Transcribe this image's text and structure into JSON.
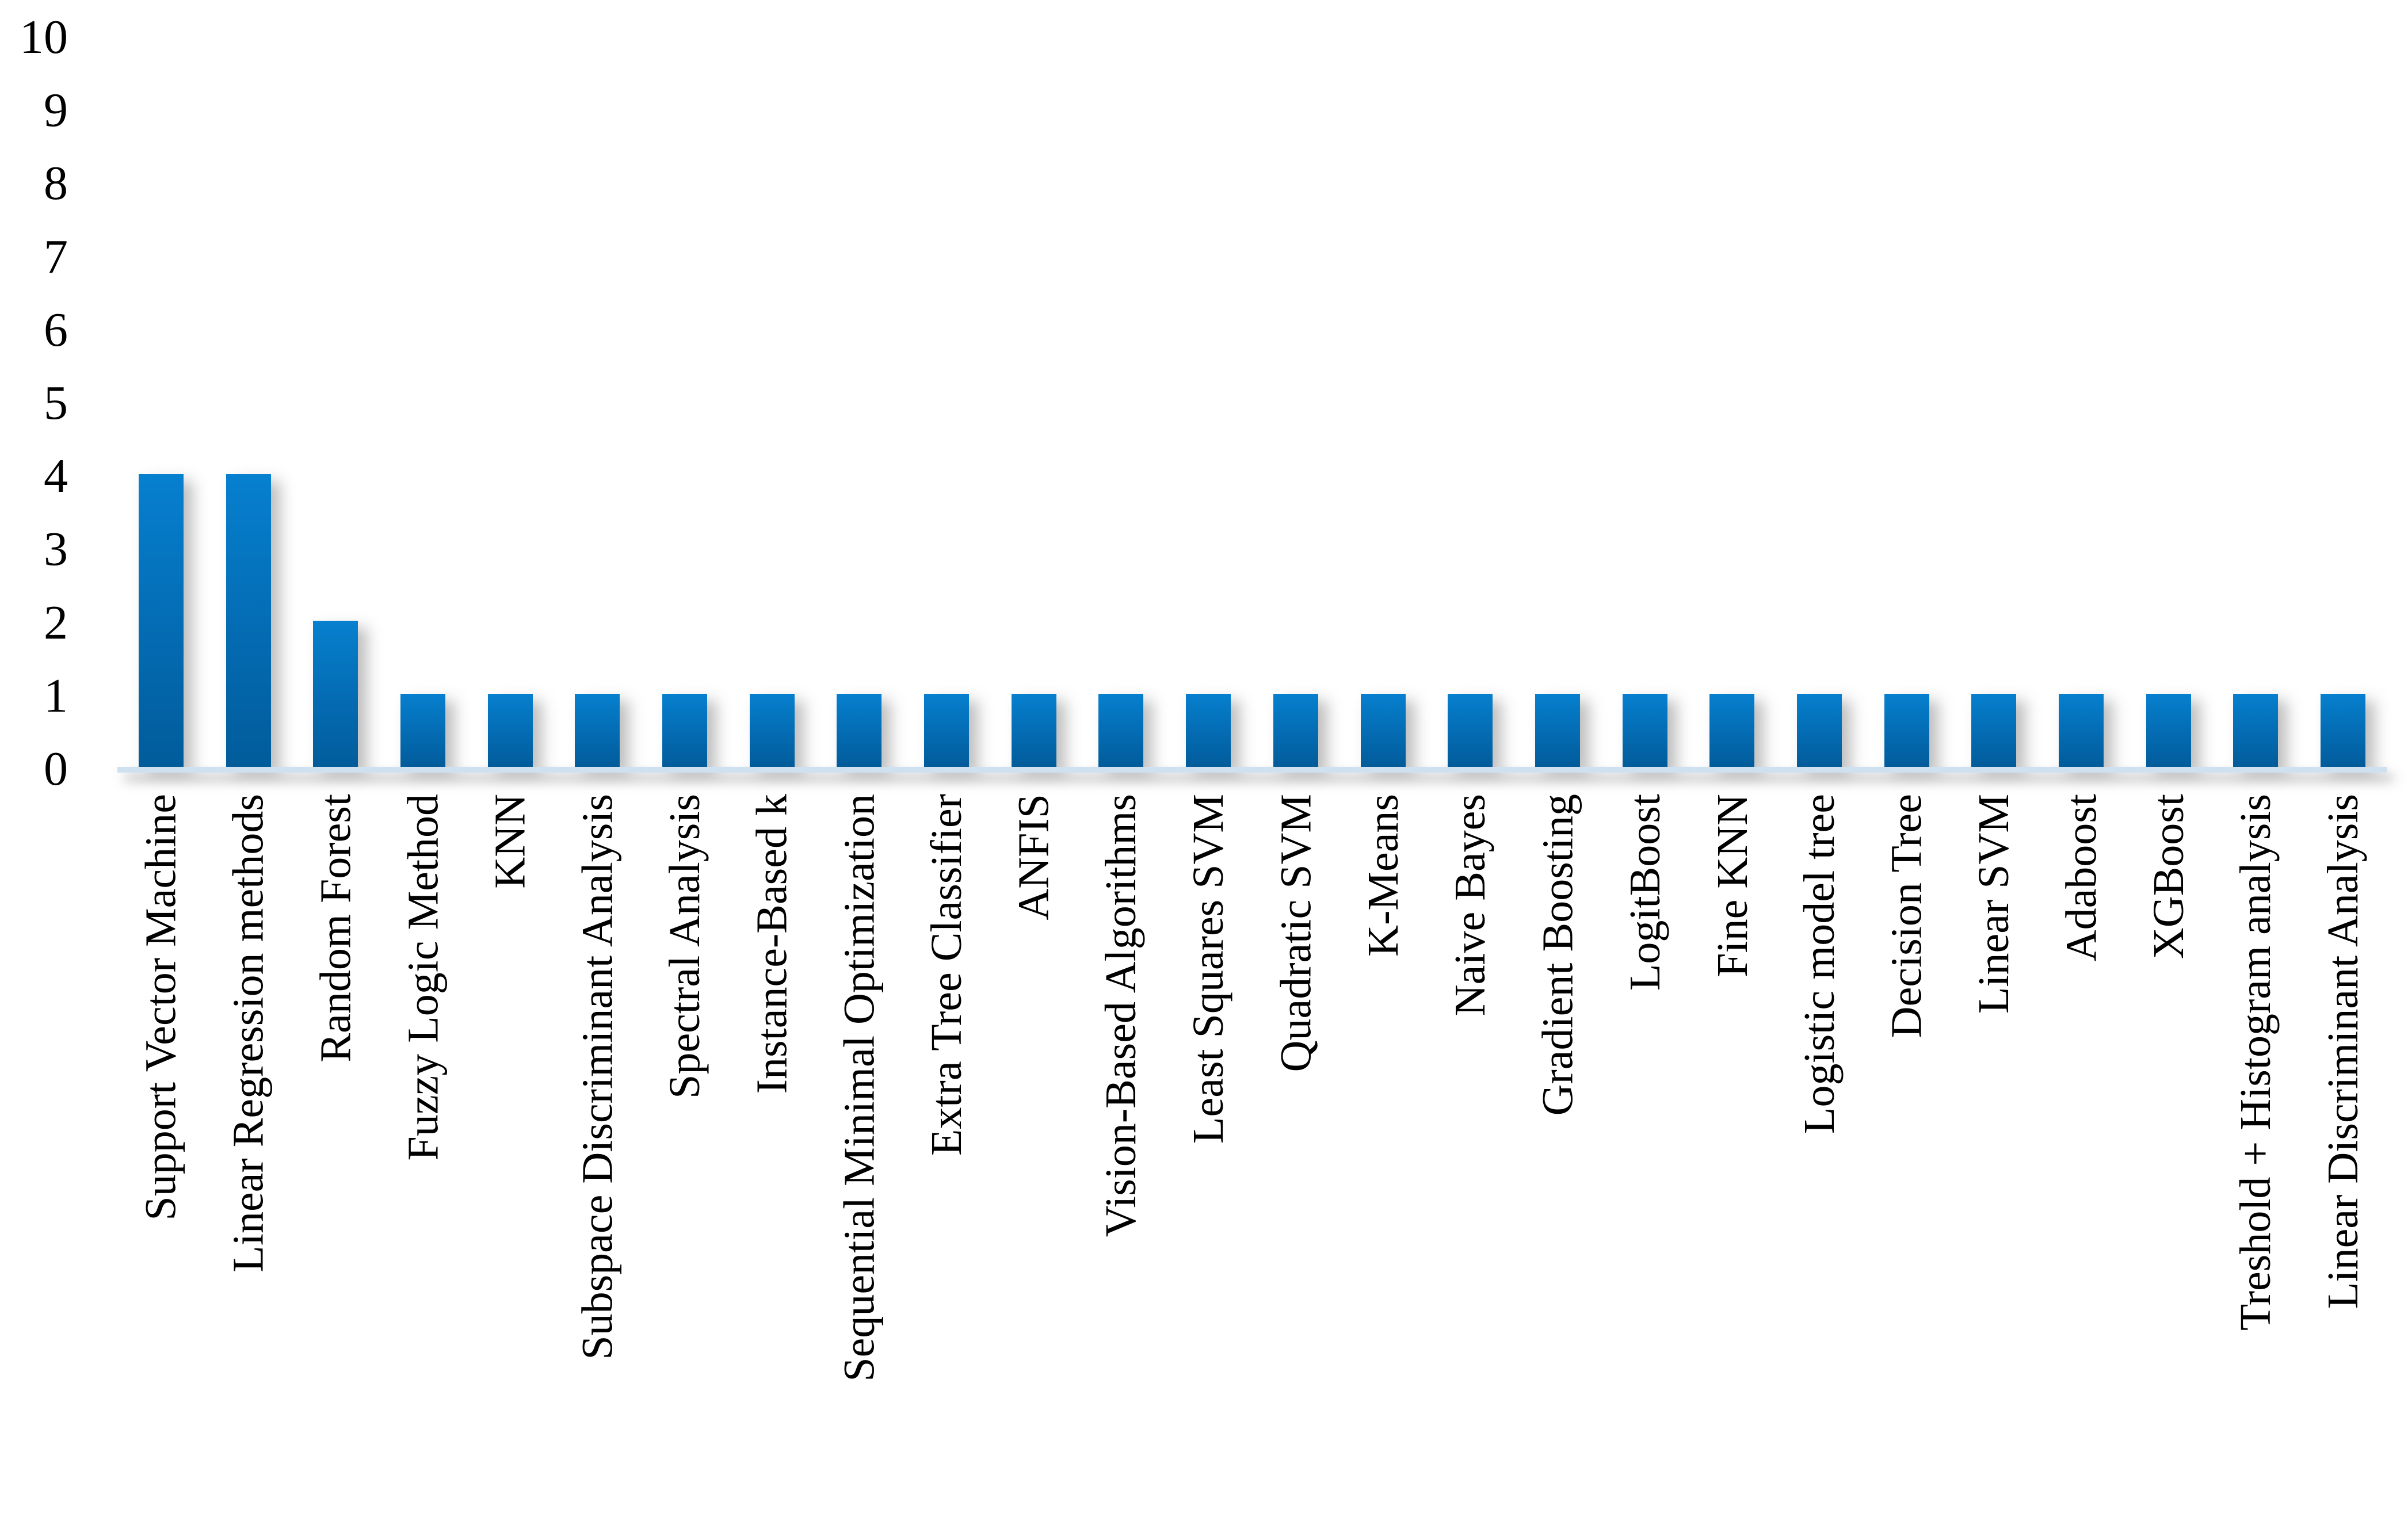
{
  "chart_data": {
    "type": "bar",
    "title": "",
    "xlabel": "",
    "ylabel": "",
    "categories": [
      "Support Vector Machine",
      "Linear Regression methods",
      "Random Forest",
      "Fuzzy Logic Method",
      "KNN",
      "Subspace Discriminant Analysis",
      "Spectral Analysis",
      "Instance-Based k",
      "Sequential Minimal Optimization",
      "Extra Tree Classifier",
      "ANFIS",
      "Vision-Based Algorithms",
      "Least Squares SVM",
      "Quadratic SVM",
      "K-Means",
      "Naive Bayes",
      "Gradient Boosting",
      "LogitBoost",
      "Fine KNN",
      "Logistic model tree",
      "Decision Tree",
      "Linear SVM",
      "Adaboost",
      "XGBoost",
      "Treshold + Histogram analysis",
      "Linear Discriminant Analysis"
    ],
    "values": [
      4,
      4,
      2,
      1,
      1,
      1,
      1,
      1,
      1,
      1,
      1,
      1,
      1,
      1,
      1,
      1,
      1,
      1,
      1,
      1,
      1,
      1,
      1,
      1,
      1,
      1
    ],
    "ylim": [
      0,
      10
    ],
    "yticks": [
      "0",
      "1",
      "2",
      "3",
      "4",
      "5",
      "6",
      "7",
      "8",
      "9",
      "10"
    ],
    "grid": "off",
    "legend": "none",
    "colors": {
      "bar_gradient_top": "#0680CF",
      "bar_gradient_bottom": "#015C9B",
      "axis_baseline": "#CFE0F0",
      "text": "#000000"
    }
  }
}
